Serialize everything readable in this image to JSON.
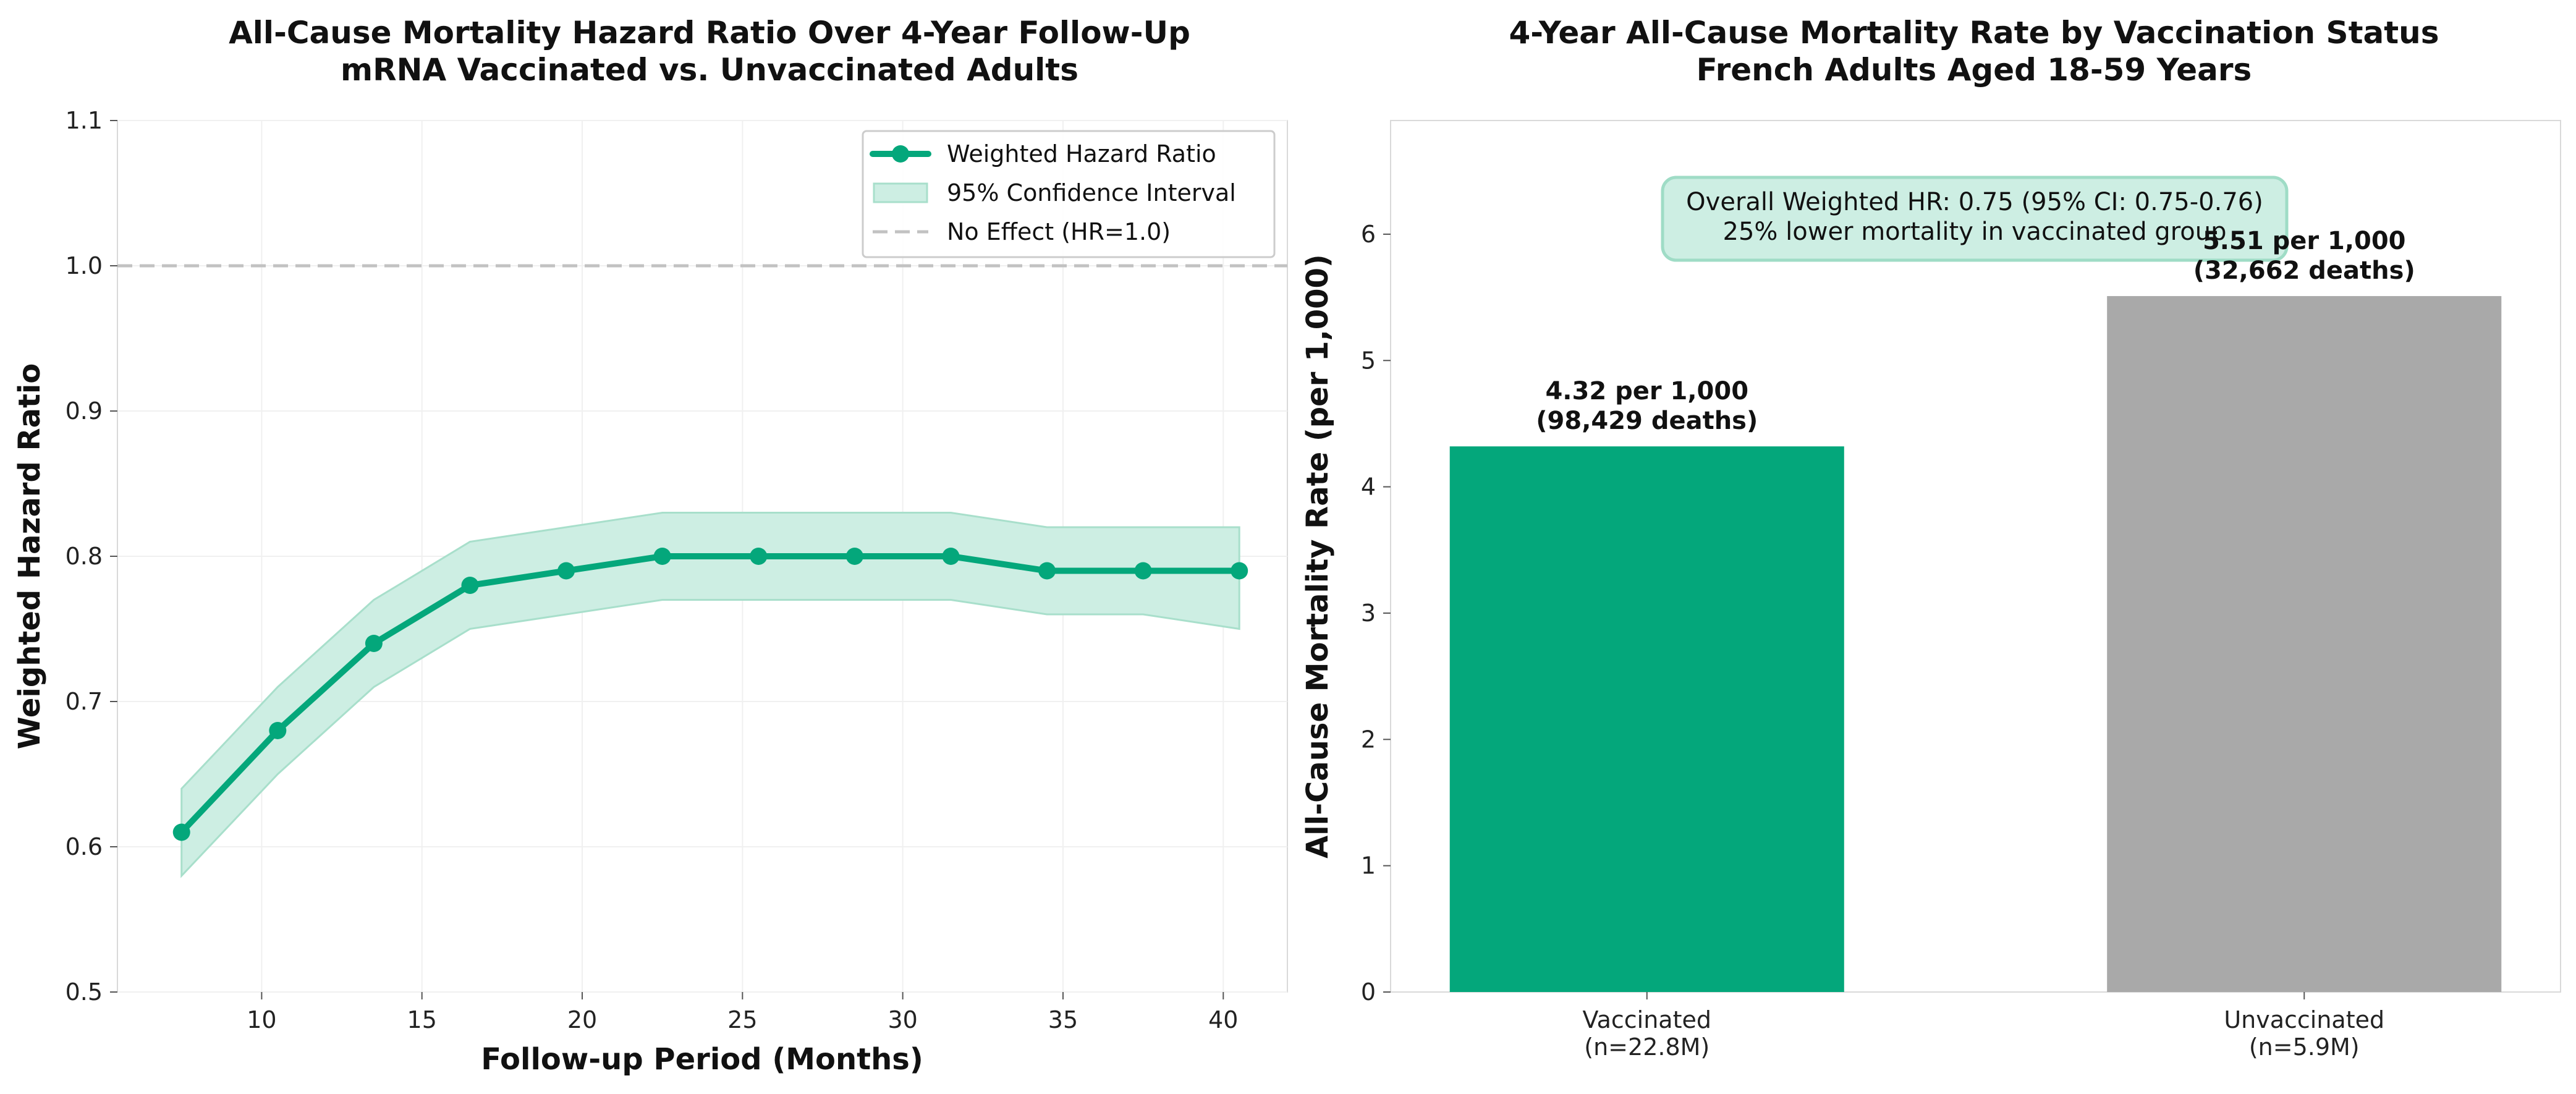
{
  "chart_data": [
    {
      "type": "line",
      "title_lines": [
        "All-Cause Mortality Hazard Ratio Over 4-Year Follow-Up",
        "mRNA Vaccinated vs. Unvaccinated Adults"
      ],
      "xlabel": "Follow-up Period (Months)",
      "ylabel": "Weighted Hazard Ratio",
      "xlim": [
        5.5,
        42.0
      ],
      "ylim": [
        0.5,
        1.1
      ],
      "xticks": [
        10,
        15,
        20,
        25,
        30,
        35,
        40
      ],
      "yticks": [
        0.5,
        0.6,
        0.7,
        0.8,
        0.9,
        1.0,
        1.1
      ],
      "ytick_labels": [
        "0.5",
        "0.6",
        "0.7",
        "0.8",
        "0.9",
        "1.0",
        "1.1"
      ],
      "grid": true,
      "legend_position": "top-right",
      "series": [
        {
          "name": "Weighted Hazard Ratio",
          "color": "#04a77b",
          "x": [
            7.5,
            10.5,
            13.5,
            16.5,
            19.5,
            22.5,
            25.5,
            28.5,
            31.5,
            34.5,
            37.5,
            40.5
          ],
          "y": [
            0.61,
            0.68,
            0.74,
            0.78,
            0.79,
            0.8,
            0.8,
            0.8,
            0.8,
            0.79,
            0.79,
            0.79
          ],
          "ci_lower": [
            0.58,
            0.65,
            0.71,
            0.75,
            0.76,
            0.77,
            0.77,
            0.77,
            0.77,
            0.76,
            0.76,
            0.75
          ],
          "ci_upper": [
            0.64,
            0.71,
            0.77,
            0.81,
            0.82,
            0.83,
            0.83,
            0.83,
            0.83,
            0.82,
            0.82,
            0.82
          ]
        }
      ],
      "ci_name": "95% Confidence Interval",
      "ci_color": "#cdeee3",
      "reference_line": {
        "name": "No Effect (HR=1.0)",
        "y": 1.0,
        "color": "#c2c2c2"
      }
    },
    {
      "type": "bar",
      "title_lines": [
        "4-Year All-Cause Mortality Rate by Vaccination Status",
        "French Adults Aged 18-59 Years"
      ],
      "xlabel": "",
      "ylabel": "All-Cause Mortality Rate (per 1,000)",
      "ylim": [
        0,
        6.9
      ],
      "yticks": [
        0,
        1,
        2,
        3,
        4,
        5,
        6
      ],
      "grid": false,
      "categories": [
        {
          "lines": [
            "Vaccinated",
            "(n=22.8M)"
          ],
          "value": 4.32,
          "color": "#04a77b",
          "label_lines": [
            "4.32 per 1,000",
            "(98,429 deaths)"
          ]
        },
        {
          "lines": [
            "Unvaccinated",
            "(n=5.9M)"
          ],
          "value": 5.51,
          "color": "#a9a9a9",
          "label_lines": [
            "5.51 per 1,000",
            "(32,662 deaths)"
          ]
        }
      ],
      "annotation": {
        "lines": [
          "Overall Weighted HR: 0.75 (95% CI: 0.75-0.76)",
          "25% lower mortality in vaccinated group"
        ],
        "bg_color": "#cdeee3",
        "border_color": "#9fdcc6"
      }
    }
  ]
}
